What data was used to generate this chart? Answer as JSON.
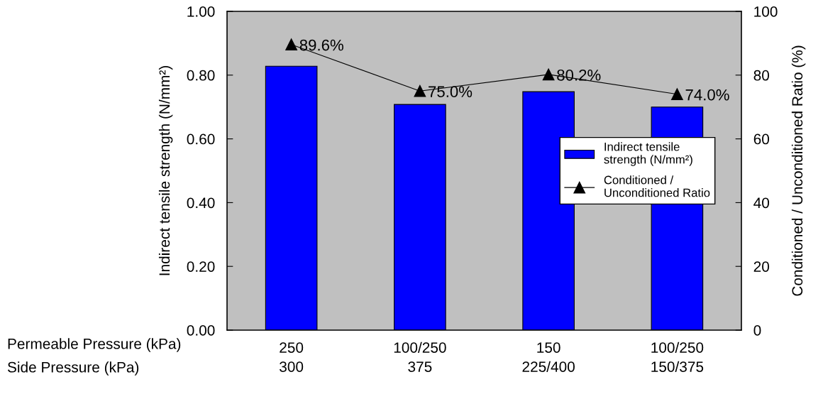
{
  "chart_data": {
    "type": "bar",
    "categories": [
      "250\n300",
      "100/250\n375",
      "150\n225/400",
      "100/250\n150/375"
    ],
    "ylabel": "Indirect tensile strength (N/mm²)",
    "y2label": "Conditioned / Unconditioned Ratio (%)",
    "ylim": [
      0,
      1
    ],
    "yticks": [
      {
        "value": 0,
        "label": "0.00"
      },
      {
        "value": 0.2,
        "label": "0.20"
      },
      {
        "value": 0.4,
        "label": "0.40"
      },
      {
        "value": 0.6,
        "label": "0.60"
      },
      {
        "value": 0.8,
        "label": "0.80"
      },
      {
        "value": 1,
        "label": "1.00"
      }
    ],
    "y2lim": [
      0,
      100
    ],
    "y2ticks": [
      0,
      20,
      40,
      60,
      80,
      100
    ],
    "series": [
      {
        "name": "Indirect tensile\nstrength (N/mm²)",
        "color": "#0000ff",
        "values": [
          0.828,
          0.708,
          0.748,
          0.7
        ]
      },
      {
        "name": "Conditioned /\nUnconditioned Ratio",
        "type": "line",
        "axis": "y2",
        "color": "#000000",
        "marker": "triangle",
        "values": [
          89.6,
          75.0,
          80.2,
          74.0
        ],
        "value_labels": [
          "89.6%",
          "75.0%",
          "80.2%",
          "74.0%"
        ]
      }
    ],
    "annotations": [
      "Permeable Pressure (kPa)",
      "Side Pressure (kPa)"
    ],
    "grid": false,
    "legend": "center right"
  }
}
